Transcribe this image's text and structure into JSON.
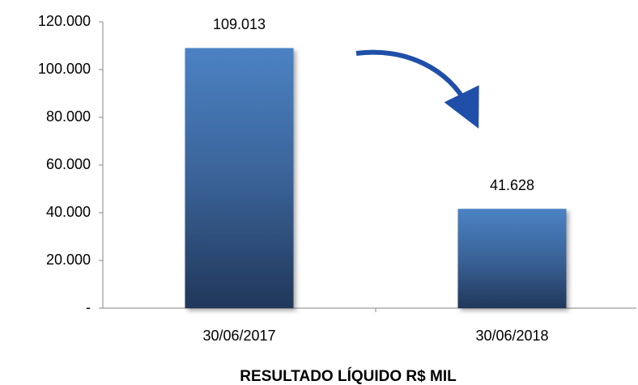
{
  "chart_data": {
    "type": "bar",
    "title": "RESULTADO LÍQUIDO  R$ MIL",
    "categories": [
      "30/06/2017",
      "30/06/2018"
    ],
    "values": [
      109013,
      41628
    ],
    "value_labels": [
      "109.013",
      "41.628"
    ],
    "color": "#4a7fc1",
    "ylim": [
      0,
      120000
    ],
    "yticks": [
      {
        "value": 0,
        "label": "-"
      },
      {
        "value": 20000,
        "label": "20.000"
      },
      {
        "value": 40000,
        "label": "40.000"
      },
      {
        "value": 60000,
        "label": "60.000"
      },
      {
        "value": 80000,
        "label": "80.000"
      },
      {
        "value": 100000,
        "label": "100.000"
      },
      {
        "value": 120000,
        "label": "120.000"
      }
    ],
    "grid": false
  }
}
